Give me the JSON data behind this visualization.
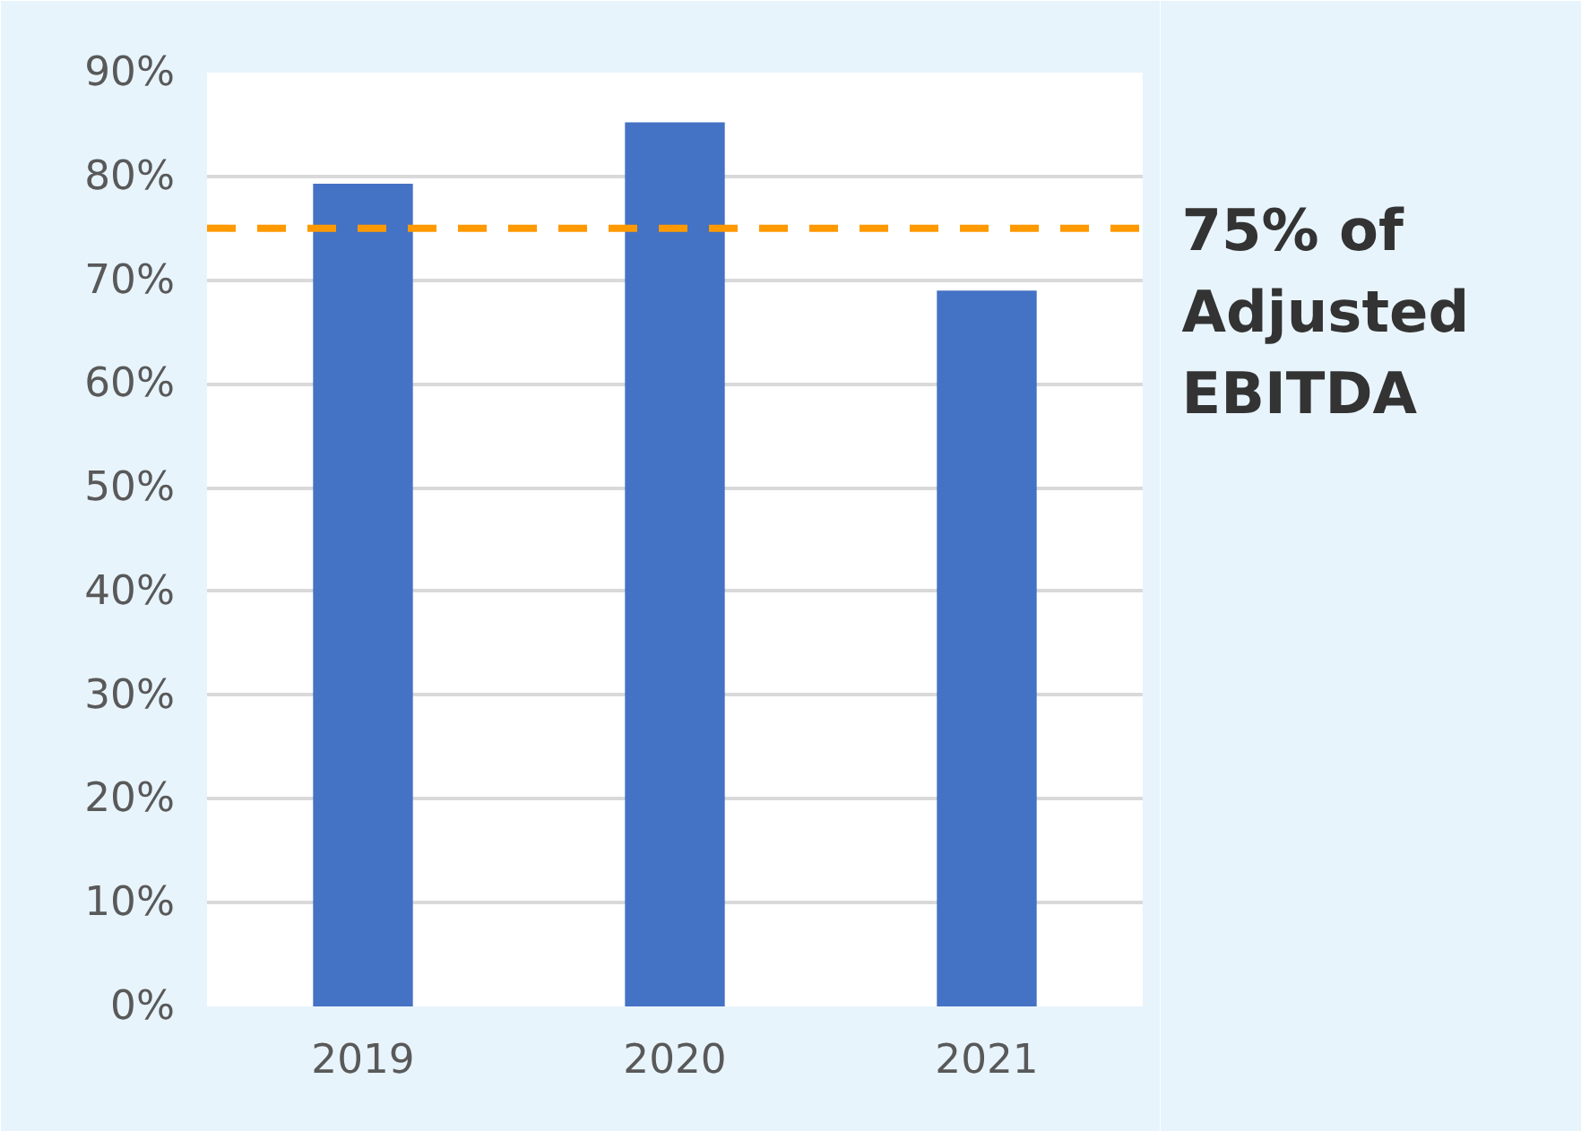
{
  "chart_data": {
    "type": "bar",
    "categories": [
      "2019",
      "2020",
      "2021"
    ],
    "values": [
      79.3,
      85.2,
      69
    ],
    "color": "#4472c4",
    "ylim": [
      0,
      90
    ],
    "yticks": [
      {
        "value": 0,
        "label": "0%"
      },
      {
        "value": 10,
        "label": "10%"
      },
      {
        "value": 20,
        "label": "20%"
      },
      {
        "value": 30,
        "label": "30%"
      },
      {
        "value": 40,
        "label": "40%"
      },
      {
        "value": 50,
        "label": "50%"
      },
      {
        "value": 60,
        "label": "60%"
      },
      {
        "value": 70,
        "label": "70%"
      },
      {
        "value": 80,
        "label": "80%"
      },
      {
        "value": 90,
        "label": "90%"
      }
    ],
    "grid": "y",
    "ref_lines": [
      {
        "axis": "y",
        "value": 75,
        "label": "75% of\nAdjusted\nEBITDA",
        "color": "#ff9900",
        "line_style": "dashed"
      }
    ]
  }
}
